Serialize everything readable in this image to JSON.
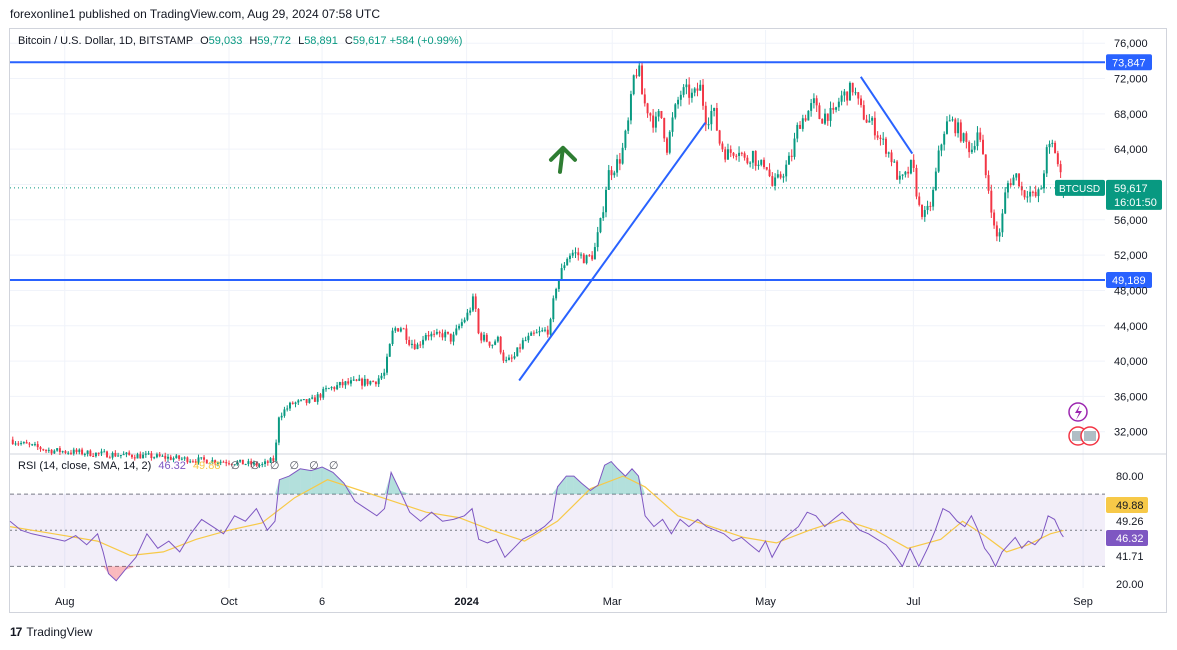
{
  "header": {
    "publisher": "forexonline1 published on TradingView.com, Aug 29, 2024 07:58 UTC"
  },
  "legend": {
    "symbol": "Bitcoin / U.S. Dollar, 1D, BITSTAMP",
    "o_label": "O",
    "o": "59,033",
    "h_label": "H",
    "h": "59,772",
    "l_label": "L",
    "l": "58,891",
    "c_label": "C",
    "c": "59,617",
    "change": "+584 (+0.99%)"
  },
  "rsi_legend": {
    "label": "RSI (14, close, SMA, 14, 2)",
    "rsi": "46.32",
    "sma": "49.88",
    "icons": [
      "∅",
      "∅",
      "∅",
      "∅",
      "∅",
      "∅"
    ]
  },
  "footer": {
    "logo": "17",
    "brand": "TradingView"
  },
  "colors": {
    "up": "#089981",
    "down": "#f23645",
    "line": "#2962ff",
    "rsi": "#7e57c2",
    "rsi_sma": "#f7c948",
    "rsi_band": "#7e57c2",
    "arrow": "#2e7d32"
  },
  "chart_data": [
    {
      "type": "candlestick",
      "title": "Bitcoin / U.S. Dollar, 1D, BITSTAMP",
      "x_ticks": [
        {
          "label": "Aug",
          "t": 0.05
        },
        {
          "label": "Oct",
          "t": 0.2
        },
        {
          "label": "6",
          "t": 0.285
        },
        {
          "label": "2024",
          "t": 0.417
        },
        {
          "label": "Mar",
          "t": 0.55
        },
        {
          "label": "May",
          "t": 0.69
        },
        {
          "label": "Jul",
          "t": 0.825
        },
        {
          "label": "Sep",
          "t": 0.98
        }
      ],
      "y_ticks": [
        "76,000",
        "72,000",
        "68,000",
        "64,000",
        "60,000",
        "56,000",
        "52,000",
        "48,000",
        "44,000",
        "40,000",
        "36,000",
        "32,000"
      ],
      "ylim": [
        29700,
        77500
      ],
      "last_price": "59,617",
      "last_symbol": "BTCUSD",
      "countdown": "16:01:50",
      "horizontal_levels": [
        {
          "value": 73847,
          "label": "73,847"
        },
        {
          "value": 49189,
          "label": "49,189"
        }
      ],
      "trendlines": [
        {
          "from": [
            0.465,
            37800
          ],
          "to": [
            0.635,
            67000
          ]
        },
        {
          "from": [
            0.777,
            72200
          ],
          "to": [
            0.824,
            63500
          ]
        }
      ],
      "annotation": {
        "type": "up-arrow",
        "t": 0.505,
        "y": 63700
      },
      "path": [
        [
          0.0,
          31100
        ],
        [
          0.012,
          30600
        ],
        [
          0.035,
          29900
        ],
        [
          0.08,
          29500
        ],
        [
          0.13,
          29200
        ],
        [
          0.17,
          28800
        ],
        [
          0.2,
          28600
        ],
        [
          0.23,
          28200
        ],
        [
          0.242,
          28900
        ],
        [
          0.245,
          33800
        ],
        [
          0.258,
          35200
        ],
        [
          0.275,
          35400
        ],
        [
          0.29,
          36800
        ],
        [
          0.305,
          37400
        ],
        [
          0.32,
          37600
        ],
        [
          0.333,
          37700
        ],
        [
          0.342,
          38600
        ],
        [
          0.35,
          43600
        ],
        [
          0.358,
          43900
        ],
        [
          0.365,
          42200
        ],
        [
          0.372,
          41700
        ],
        [
          0.38,
          43200
        ],
        [
          0.388,
          42700
        ],
        [
          0.396,
          43100
        ],
        [
          0.404,
          42400
        ],
        [
          0.41,
          43900
        ],
        [
          0.418,
          45300
        ],
        [
          0.424,
          47200
        ],
        [
          0.428,
          42900
        ],
        [
          0.434,
          42500
        ],
        [
          0.44,
          41900
        ],
        [
          0.445,
          42600
        ],
        [
          0.452,
          39800
        ],
        [
          0.46,
          40300
        ],
        [
          0.468,
          42100
        ],
        [
          0.478,
          42900
        ],
        [
          0.486,
          43300
        ],
        [
          0.493,
          43600
        ],
        [
          0.498,
          48300
        ],
        [
          0.503,
          49900
        ],
        [
          0.508,
          51700
        ],
        [
          0.513,
          52300
        ],
        [
          0.52,
          52000
        ],
        [
          0.526,
          51500
        ],
        [
          0.533,
          52100
        ],
        [
          0.54,
          56000
        ],
        [
          0.546,
          61200
        ],
        [
          0.552,
          62000
        ],
        [
          0.558,
          63100
        ],
        [
          0.565,
          67200
        ],
        [
          0.57,
          72500
        ],
        [
          0.574,
          73200
        ],
        [
          0.578,
          69500
        ],
        [
          0.583,
          68400
        ],
        [
          0.589,
          66800
        ],
        [
          0.594,
          68200
        ],
        [
          0.6,
          64200
        ],
        [
          0.606,
          67800
        ],
        [
          0.612,
          70300
        ],
        [
          0.618,
          70500
        ],
        [
          0.624,
          69900
        ],
        [
          0.63,
          71200
        ],
        [
          0.636,
          67200
        ],
        [
          0.642,
          68600
        ],
        [
          0.648,
          64800
        ],
        [
          0.654,
          63400
        ],
        [
          0.66,
          63800
        ],
        [
          0.666,
          64100
        ],
        [
          0.672,
          62400
        ],
        [
          0.678,
          63700
        ],
        [
          0.684,
          61800
        ],
        [
          0.69,
          62700
        ],
        [
          0.696,
          59800
        ],
        [
          0.702,
          60600
        ],
        [
          0.708,
          61800
        ],
        [
          0.714,
          63400
        ],
        [
          0.72,
          66900
        ],
        [
          0.727,
          67900
        ],
        [
          0.734,
          69200
        ],
        [
          0.74,
          67400
        ],
        [
          0.746,
          68100
        ],
        [
          0.752,
          67700
        ],
        [
          0.758,
          69800
        ],
        [
          0.764,
          70300
        ],
        [
          0.77,
          71000
        ],
        [
          0.776,
          68600
        ],
        [
          0.782,
          67400
        ],
        [
          0.788,
          66800
        ],
        [
          0.794,
          65300
        ],
        [
          0.8,
          64200
        ],
        [
          0.806,
          62700
        ],
        [
          0.812,
          60300
        ],
        [
          0.818,
          60900
        ],
        [
          0.824,
          62400
        ],
        [
          0.83,
          57400
        ],
        [
          0.836,
          56400
        ],
        [
          0.842,
          58200
        ],
        [
          0.848,
          63200
        ],
        [
          0.854,
          66700
        ],
        [
          0.86,
          67100
        ],
        [
          0.866,
          66200
        ],
        [
          0.872,
          64800
        ],
        [
          0.878,
          63900
        ],
        [
          0.884,
          66300
        ],
        [
          0.89,
          61700
        ],
        [
          0.895,
          58700
        ],
        [
          0.9,
          53700
        ],
        [
          0.905,
          55200
        ],
        [
          0.91,
          59900
        ],
        [
          0.915,
          60600
        ],
        [
          0.92,
          61100
        ],
        [
          0.925,
          58800
        ],
        [
          0.93,
          59400
        ],
        [
          0.935,
          58500
        ],
        [
          0.941,
          59100
        ],
        [
          0.947,
          63800
        ],
        [
          0.953,
          64600
        ],
        [
          0.958,
          61700
        ],
        [
          0.962,
          59617
        ]
      ]
    },
    {
      "type": "line",
      "title": "RSI (14, close, SMA, 14, 2)",
      "y_ticks": [
        "80.00",
        "49.26",
        "41.71",
        "20.00"
      ],
      "ylim": [
        18,
        90
      ],
      "bands": {
        "upper": 70,
        "middle": 50,
        "lower": 30
      },
      "rsi_label": "46.32",
      "sma_label": "49.88",
      "series": [
        {
          "name": "RSI",
          "values": [
            [
              0.0,
              55
            ],
            [
              0.01,
              50
            ],
            [
              0.02,
              48
            ],
            [
              0.035,
              46
            ],
            [
              0.05,
              44
            ],
            [
              0.06,
              47
            ],
            [
              0.07,
              42
            ],
            [
              0.08,
              48
            ],
            [
              0.085,
              38
            ],
            [
              0.09,
              26
            ],
            [
              0.097,
              22
            ],
            [
              0.105,
              28
            ],
            [
              0.115,
              35
            ],
            [
              0.125,
              48
            ],
            [
              0.135,
              40
            ],
            [
              0.145,
              44
            ],
            [
              0.155,
              38
            ],
            [
              0.165,
              48
            ],
            [
              0.175,
              56
            ],
            [
              0.185,
              52
            ],
            [
              0.195,
              48
            ],
            [
              0.205,
              58
            ],
            [
              0.215,
              55
            ],
            [
              0.225,
              62
            ],
            [
              0.235,
              50
            ],
            [
              0.242,
              55
            ],
            [
              0.246,
              78
            ],
            [
              0.255,
              80
            ],
            [
              0.265,
              84
            ],
            [
              0.275,
              83
            ],
            [
              0.285,
              85
            ],
            [
              0.295,
              82
            ],
            [
              0.305,
              76
            ],
            [
              0.315,
              66
            ],
            [
              0.325,
              62
            ],
            [
              0.335,
              58
            ],
            [
              0.342,
              62
            ],
            [
              0.348,
              82
            ],
            [
              0.356,
              72
            ],
            [
              0.365,
              60
            ],
            [
              0.375,
              55
            ],
            [
              0.385,
              60
            ],
            [
              0.395,
              55
            ],
            [
              0.405,
              56
            ],
            [
              0.415,
              58
            ],
            [
              0.422,
              62
            ],
            [
              0.428,
              45
            ],
            [
              0.436,
              43
            ],
            [
              0.444,
              45
            ],
            [
              0.452,
              35
            ],
            [
              0.46,
              40
            ],
            [
              0.468,
              45
            ],
            [
              0.478,
              48
            ],
            [
              0.488,
              52
            ],
            [
              0.495,
              56
            ],
            [
              0.5,
              74
            ],
            [
              0.508,
              80
            ],
            [
              0.515,
              80
            ],
            [
              0.522,
              76
            ],
            [
              0.53,
              72
            ],
            [
              0.537,
              75
            ],
            [
              0.543,
              86
            ],
            [
              0.549,
              88
            ],
            [
              0.555,
              84
            ],
            [
              0.562,
              80
            ],
            [
              0.568,
              84
            ],
            [
              0.574,
              80
            ],
            [
              0.58,
              58
            ],
            [
              0.588,
              52
            ],
            [
              0.596,
              56
            ],
            [
              0.604,
              48
            ],
            [
              0.612,
              56
            ],
            [
              0.62,
              52
            ],
            [
              0.628,
              56
            ],
            [
              0.636,
              52
            ],
            [
              0.644,
              50
            ],
            [
              0.652,
              48
            ],
            [
              0.66,
              44
            ],
            [
              0.668,
              46
            ],
            [
              0.676,
              42
            ],
            [
              0.684,
              38
            ],
            [
              0.69,
              44
            ],
            [
              0.696,
              35
            ],
            [
              0.704,
              44
            ],
            [
              0.712,
              48
            ],
            [
              0.72,
              52
            ],
            [
              0.728,
              60
            ],
            [
              0.736,
              58
            ],
            [
              0.744,
              52
            ],
            [
              0.752,
              56
            ],
            [
              0.76,
              60
            ],
            [
              0.768,
              55
            ],
            [
              0.776,
              50
            ],
            [
              0.784,
              48
            ],
            [
              0.792,
              45
            ],
            [
              0.8,
              42
            ],
            [
              0.808,
              36
            ],
            [
              0.815,
              30
            ],
            [
              0.822,
              40
            ],
            [
              0.83,
              30
            ],
            [
              0.838,
              40
            ],
            [
              0.845,
              50
            ],
            [
              0.852,
              62
            ],
            [
              0.858,
              60
            ],
            [
              0.865,
              55
            ],
            [
              0.872,
              52
            ],
            [
              0.878,
              58
            ],
            [
              0.884,
              50
            ],
            [
              0.89,
              40
            ],
            [
              0.895,
              36
            ],
            [
              0.9,
              30
            ],
            [
              0.906,
              38
            ],
            [
              0.912,
              42
            ],
            [
              0.918,
              46
            ],
            [
              0.924,
              40
            ],
            [
              0.93,
              44
            ],
            [
              0.936,
              42
            ],
            [
              0.942,
              46
            ],
            [
              0.948,
              58
            ],
            [
              0.954,
              56
            ],
            [
              0.96,
              48
            ],
            [
              0.962,
              46.32
            ]
          ]
        },
        {
          "name": "SMA",
          "values": [
            [
              0.0,
              52
            ],
            [
              0.04,
              48
            ],
            [
              0.08,
              44
            ],
            [
              0.11,
              36
            ],
            [
              0.14,
              38
            ],
            [
              0.17,
              45
            ],
            [
              0.2,
              50
            ],
            [
              0.23,
              54
            ],
            [
              0.26,
              68
            ],
            [
              0.29,
              78
            ],
            [
              0.32,
              72
            ],
            [
              0.35,
              66
            ],
            [
              0.38,
              60
            ],
            [
              0.41,
              57
            ],
            [
              0.44,
              50
            ],
            [
              0.47,
              44
            ],
            [
              0.5,
              55
            ],
            [
              0.53,
              73
            ],
            [
              0.56,
              80
            ],
            [
              0.58,
              74
            ],
            [
              0.61,
              58
            ],
            [
              0.64,
              52
            ],
            [
              0.67,
              46
            ],
            [
              0.7,
              43
            ],
            [
              0.73,
              50
            ],
            [
              0.76,
              56
            ],
            [
              0.79,
              50
            ],
            [
              0.82,
              40
            ],
            [
              0.85,
              45
            ],
            [
              0.87,
              55
            ],
            [
              0.89,
              47
            ],
            [
              0.91,
              38
            ],
            [
              0.93,
              42
            ],
            [
              0.95,
              48
            ],
            [
              0.962,
              49.88
            ]
          ]
        }
      ]
    }
  ]
}
